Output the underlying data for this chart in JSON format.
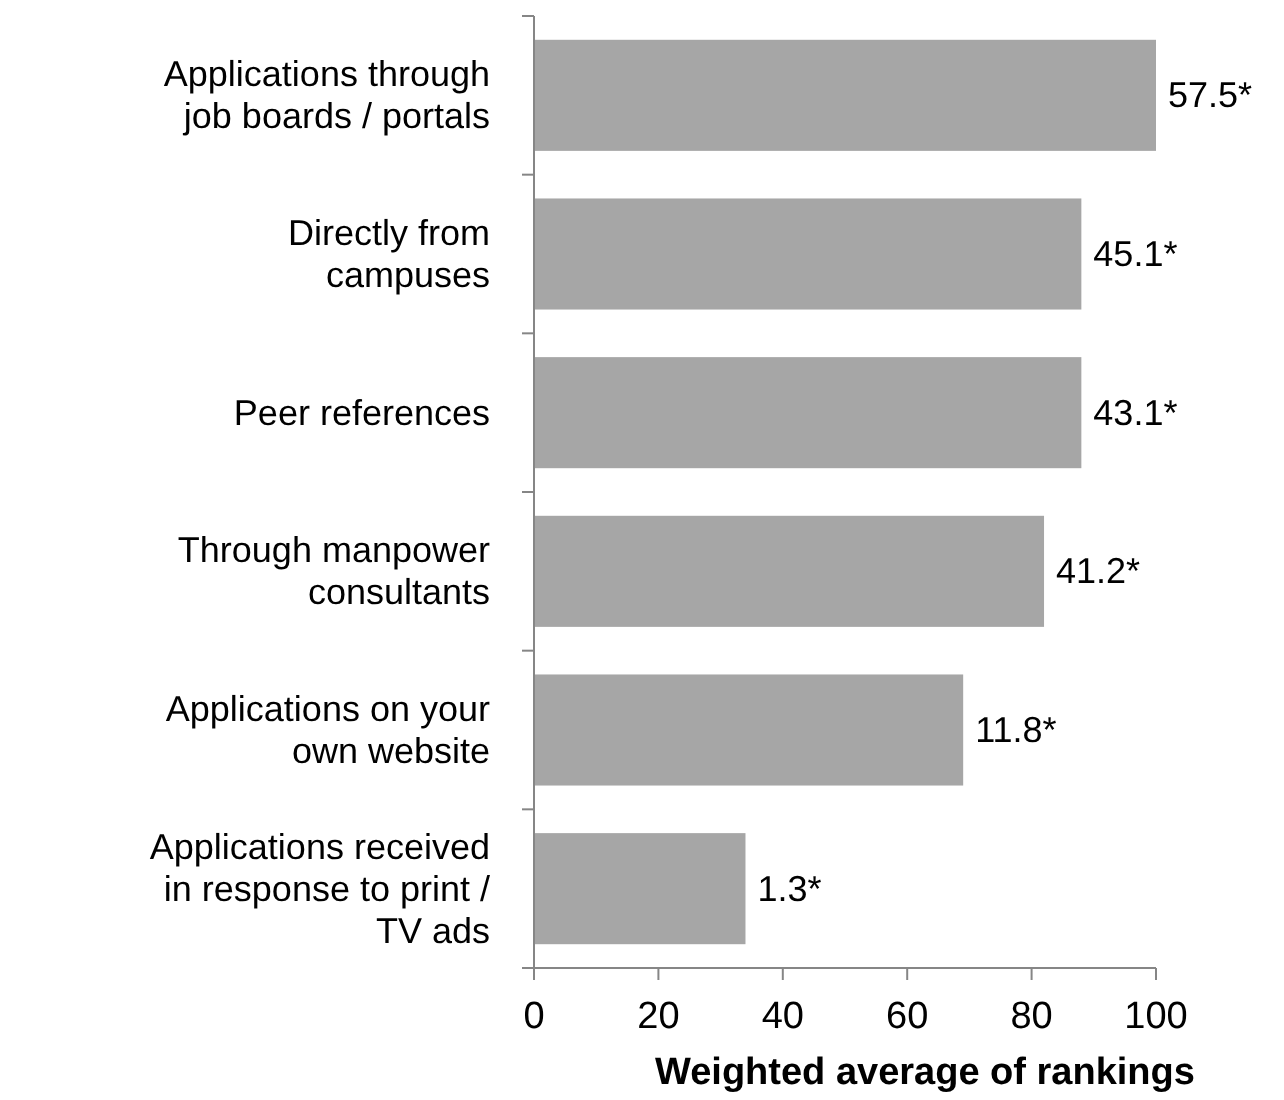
{
  "chart_data": {
    "type": "bar",
    "orientation": "horizontal",
    "categories": [
      "Applications through\njob boards / portals",
      "Directly from\ncampuses",
      "Peer references",
      "Through manpower\nconsultants",
      "Applications on your\nown website",
      "Applications received\nin response to print /\nTV ads"
    ],
    "values": [
      100,
      88,
      88,
      82,
      69,
      34
    ],
    "annotations": [
      {
        "text": "57.5*",
        "x": 100,
        "y": "Applications through\njob boards / portals"
      },
      {
        "text": "45.1*",
        "x": 88,
        "y": "Directly from\ncampuses"
      },
      {
        "text": "43.1*",
        "x": 88,
        "y": "Peer references"
      },
      {
        "text": "41.2*",
        "x": 82,
        "y": "Through manpower\nconsultants"
      },
      {
        "text": "11.8*",
        "x": 69,
        "y": "Applications on your\nown website"
      },
      {
        "text": "1.3*",
        "x": 34,
        "y": "Applications received\nin response to print /\nTV ads"
      }
    ],
    "color": "#a6a6a6",
    "xlim": [
      0,
      100
    ],
    "xticks": [
      0,
      20,
      40,
      60,
      80,
      100
    ],
    "xlabel": "Weighted average of rankings",
    "grid": false
  }
}
